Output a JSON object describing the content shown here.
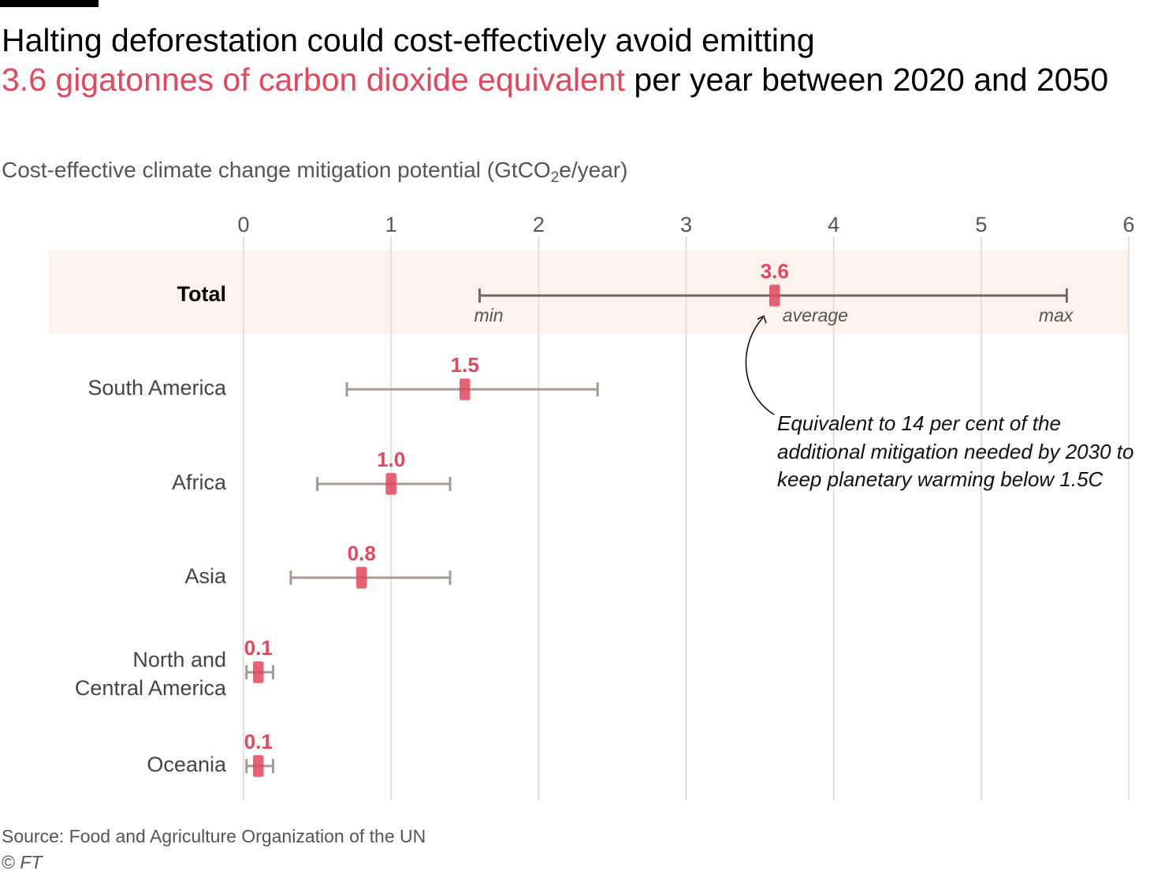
{
  "header": {
    "title_part1": "Halting deforestation could cost-effectively avoid emitting",
    "title_highlight": "3.6 gigatonnes of carbon dioxide equivalent",
    "title_part2": "per year between 2020 and 2050",
    "subtitle_pre": "Cost-effective climate change mitigation potential (GtCO",
    "subtitle_sub": "2",
    "subtitle_post": "e/year)"
  },
  "footer": {
    "source": "Source: Food and Agriculture Organization of the UN",
    "copyright_symbol": "©",
    "copyright_brand": "FT"
  },
  "annotation": {
    "text": "Equivalent to 14 per cent of the additional mitigation needed by 2030 to keep planetary warming below 1.5C"
  },
  "colors": {
    "accent": "#e3475d",
    "highlight_band": "#fdf3ec",
    "gridline": "#e6ddd5",
    "range_total": "#6e6a67",
    "range_region": "#a69a92",
    "axis_text": "#555555"
  },
  "chart_data": {
    "type": "range-dot",
    "xlim": [
      0,
      6
    ],
    "ticks": [
      0,
      1,
      2,
      3,
      4,
      5,
      6
    ],
    "grid": true,
    "tick_position": "top",
    "range_labels": {
      "min": "min",
      "average": "average",
      "max": "max"
    },
    "rows": [
      {
        "label": "Total",
        "min": 1.6,
        "avg": 3.6,
        "max": 5.58,
        "value_label": "3.6",
        "highlight": true
      },
      {
        "label": "South America",
        "min": 0.7,
        "avg": 1.5,
        "max": 2.4,
        "value_label": "1.5"
      },
      {
        "label": "Africa",
        "min": 0.5,
        "avg": 1.0,
        "max": 1.4,
        "value_label": "1.0"
      },
      {
        "label": "Asia",
        "min": 0.32,
        "avg": 0.8,
        "max": 1.4,
        "value_label": "0.8"
      },
      {
        "label": "North and Central America",
        "label_lines": [
          "North and",
          "Central America"
        ],
        "min": 0.02,
        "avg": 0.1,
        "max": 0.2,
        "value_label": "0.1"
      },
      {
        "label": "Oceania",
        "min": 0.02,
        "avg": 0.1,
        "max": 0.2,
        "value_label": "0.1"
      }
    ]
  }
}
